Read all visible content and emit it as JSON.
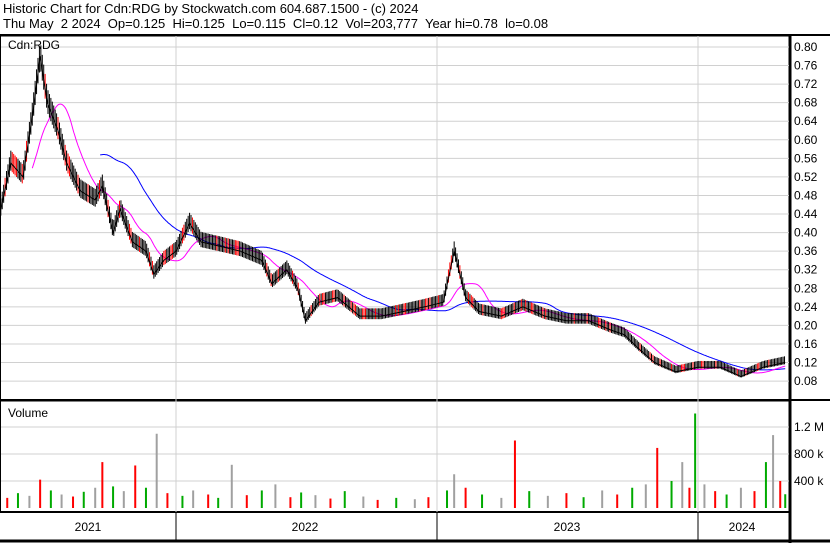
{
  "header": {
    "title": "Historic Chart for Cdn:RDG by Stockwatch.com 604.687.1500 - (c) 2024",
    "quote": "Thu May  2 2024  Op=0.125  Hi=0.125  Lo=0.115  Cl=0.12  Vol=203,777  Year hi=0.78  lo=0.08"
  },
  "chart_data": [
    {
      "type": "line",
      "title": "Cdn:RDG",
      "ylim": [
        0.06,
        0.82
      ],
      "yticks": [
        "0.80",
        "0.76",
        "0.72",
        "0.68",
        "0.64",
        "0.60",
        "0.56",
        "0.52",
        "0.48",
        "0.44",
        "0.40",
        "0.36",
        "0.32",
        "0.28",
        "0.24",
        "0.20",
        "0.16",
        "0.12",
        "0.08"
      ],
      "xticks": [
        "2021",
        "2022",
        "2023",
        "2024"
      ],
      "grid": true,
      "colors": {
        "price": "#000000",
        "ma_short": "#ff00ff",
        "ma_long": "#0000ff"
      },
      "price": [
        [
          "2021-05-01",
          0.45
        ],
        [
          "2021-05-15",
          0.55
        ],
        [
          "2021-06-01",
          0.52
        ],
        [
          "2021-06-15",
          0.66
        ],
        [
          "2021-06-25",
          0.78
        ],
        [
          "2021-07-05",
          0.68
        ],
        [
          "2021-07-20",
          0.62
        ],
        [
          "2021-08-01",
          0.55
        ],
        [
          "2021-08-20",
          0.49
        ],
        [
          "2021-09-10",
          0.47
        ],
        [
          "2021-09-20",
          0.5
        ],
        [
          "2021-10-05",
          0.4
        ],
        [
          "2021-10-15",
          0.45
        ],
        [
          "2021-11-01",
          0.38
        ],
        [
          "2021-11-20",
          0.36
        ],
        [
          "2021-12-01",
          0.31
        ],
        [
          "2021-12-15",
          0.34
        ],
        [
          "2022-01-01",
          0.36
        ],
        [
          "2022-01-20",
          0.42
        ],
        [
          "2022-02-05",
          0.38
        ],
        [
          "2022-03-05",
          0.37
        ],
        [
          "2022-04-01",
          0.36
        ],
        [
          "2022-05-01",
          0.34
        ],
        [
          "2022-05-15",
          0.29
        ],
        [
          "2022-06-05",
          0.32
        ],
        [
          "2022-06-20",
          0.28
        ],
        [
          "2022-07-01",
          0.21
        ],
        [
          "2022-07-20",
          0.25
        ],
        [
          "2022-08-15",
          0.26
        ],
        [
          "2022-09-15",
          0.22
        ],
        [
          "2022-10-15",
          0.22
        ],
        [
          "2022-11-15",
          0.23
        ],
        [
          "2022-12-15",
          0.24
        ],
        [
          "2023-01-10",
          0.25
        ],
        [
          "2023-01-25",
          0.36
        ],
        [
          "2023-02-10",
          0.26
        ],
        [
          "2023-03-01",
          0.23
        ],
        [
          "2023-04-01",
          0.22
        ],
        [
          "2023-05-01",
          0.24
        ],
        [
          "2023-06-01",
          0.22
        ],
        [
          "2023-07-01",
          0.21
        ],
        [
          "2023-08-01",
          0.21
        ],
        [
          "2023-09-01",
          0.19
        ],
        [
          "2023-09-20",
          0.18
        ],
        [
          "2023-10-10",
          0.15
        ],
        [
          "2023-11-01",
          0.12
        ],
        [
          "2023-12-01",
          0.1
        ],
        [
          "2024-01-01",
          0.11
        ],
        [
          "2024-02-01",
          0.11
        ],
        [
          "2024-03-01",
          0.09
        ],
        [
          "2024-04-01",
          0.11
        ],
        [
          "2024-05-02",
          0.12
        ]
      ]
    },
    {
      "type": "bar",
      "title": "Volume",
      "ylim": [
        0,
        1600000
      ],
      "yticks": [
        "1.2 M",
        "800 k",
        "400 k"
      ],
      "colors": {
        "up": "#00aa00",
        "down": "#ff0000",
        "flat": "#a0a0a0"
      },
      "volume": [
        [
          "2021-05-10",
          150000
        ],
        [
          "2021-05-25",
          220000
        ],
        [
          "2021-06-10",
          180000
        ],
        [
          "2021-06-25",
          420000
        ],
        [
          "2021-07-10",
          260000
        ],
        [
          "2021-07-25",
          200000
        ],
        [
          "2021-08-10",
          170000
        ],
        [
          "2021-08-25",
          240000
        ],
        [
          "2021-09-10",
          300000
        ],
        [
          "2021-09-20",
          680000
        ],
        [
          "2021-10-05",
          320000
        ],
        [
          "2021-10-20",
          250000
        ],
        [
          "2021-11-05",
          630000
        ],
        [
          "2021-11-20",
          300000
        ],
        [
          "2021-12-05",
          1100000
        ],
        [
          "2021-12-20",
          220000
        ],
        [
          "2022-01-10",
          180000
        ],
        [
          "2022-01-25",
          260000
        ],
        [
          "2022-02-15",
          200000
        ],
        [
          "2022-03-01",
          150000
        ],
        [
          "2022-03-20",
          640000
        ],
        [
          "2022-04-10",
          190000
        ],
        [
          "2022-05-01",
          260000
        ],
        [
          "2022-05-20",
          350000
        ],
        [
          "2022-06-10",
          160000
        ],
        [
          "2022-06-25",
          230000
        ],
        [
          "2022-07-15",
          190000
        ],
        [
          "2022-08-05",
          140000
        ],
        [
          "2022-08-25",
          250000
        ],
        [
          "2022-09-20",
          170000
        ],
        [
          "2022-10-10",
          120000
        ],
        [
          "2022-11-05",
          150000
        ],
        [
          "2022-12-01",
          130000
        ],
        [
          "2022-12-20",
          160000
        ],
        [
          "2023-01-15",
          260000
        ],
        [
          "2023-01-25",
          500000
        ],
        [
          "2023-02-10",
          300000
        ],
        [
          "2023-03-05",
          200000
        ],
        [
          "2023-04-01",
          150000
        ],
        [
          "2023-04-20",
          1000000
        ],
        [
          "2023-05-10",
          250000
        ],
        [
          "2023-06-05",
          180000
        ],
        [
          "2023-07-01",
          220000
        ],
        [
          "2023-07-25",
          160000
        ],
        [
          "2023-08-20",
          260000
        ],
        [
          "2023-09-10",
          200000
        ],
        [
          "2023-10-01",
          300000
        ],
        [
          "2023-10-20",
          350000
        ],
        [
          "2023-11-05",
          890000
        ],
        [
          "2023-11-25",
          400000
        ],
        [
          "2023-12-10",
          680000
        ],
        [
          "2023-12-20",
          300000
        ],
        [
          "2023-12-28",
          1400000
        ],
        [
          "2024-01-10",
          350000
        ],
        [
          "2024-01-25",
          250000
        ],
        [
          "2024-02-10",
          200000
        ],
        [
          "2024-03-01",
          300000
        ],
        [
          "2024-03-20",
          250000
        ],
        [
          "2024-04-05",
          680000
        ],
        [
          "2024-04-15",
          1080000
        ],
        [
          "2024-04-25",
          400000
        ],
        [
          "2024-05-02",
          203777
        ]
      ]
    }
  ]
}
